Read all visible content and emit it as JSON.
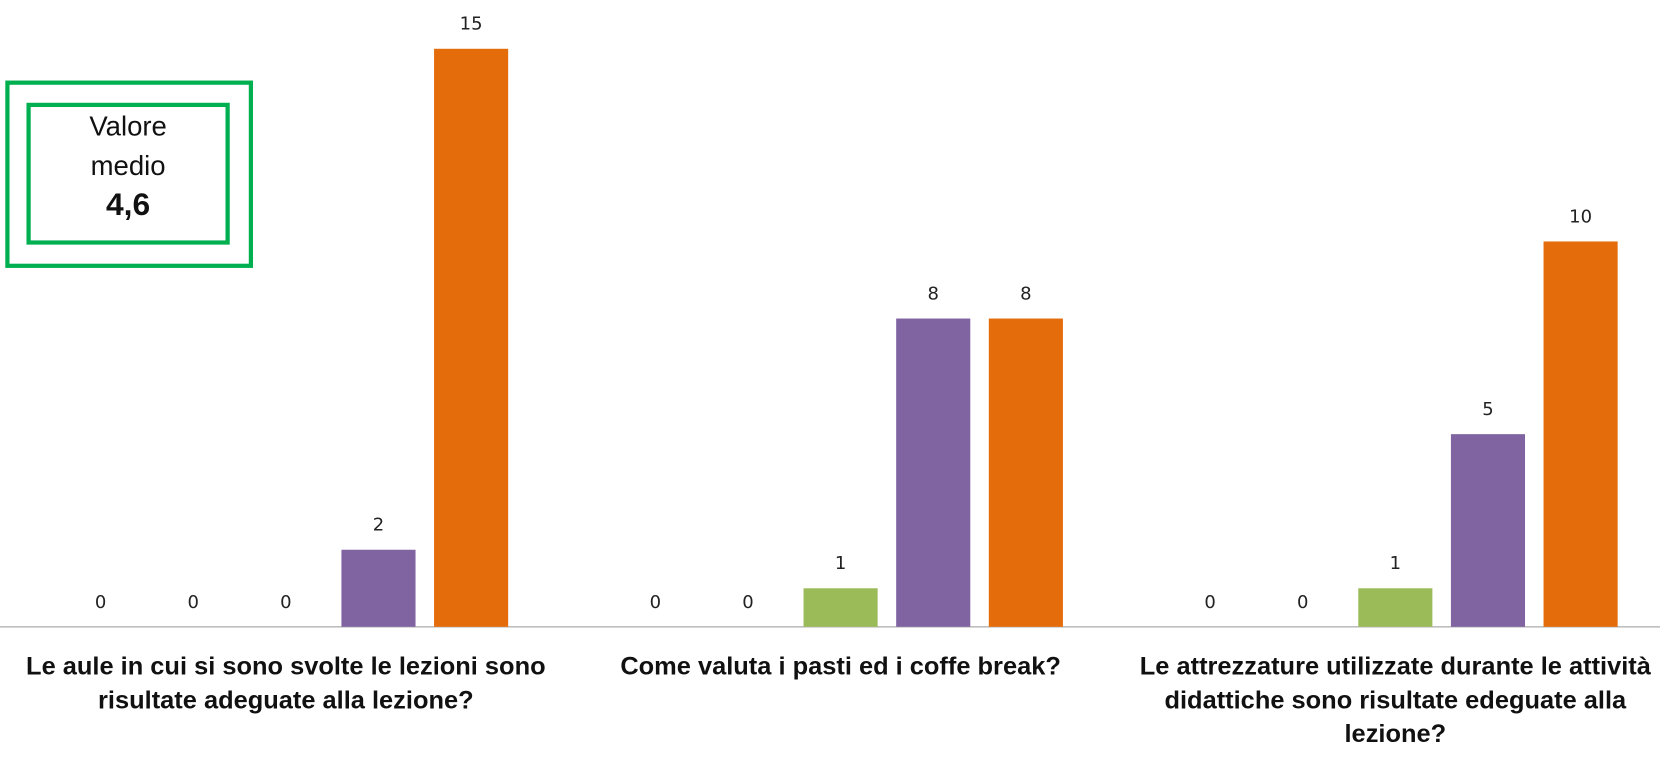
{
  "chart_data": {
    "type": "bar",
    "categories": [
      "Le aule in cui si sono svolte le lezioni sono risultate adeguate alla lezione?",
      "Come valuta i pasti ed i coffe break?",
      "Le attrezzature utilizzate durante le attività didattiche sono risultate edeguate alla lezione?"
    ],
    "series": [
      {
        "color": "#4F81BD",
        "values": [
          0,
          0,
          0
        ]
      },
      {
        "color": "#C0504D",
        "values": [
          0,
          0,
          0
        ]
      },
      {
        "color": "#9BBB59",
        "values": [
          0,
          1,
          1
        ]
      },
      {
        "color": "#8064A2",
        "values": [
          2,
          8,
          5
        ]
      },
      {
        "color": "#E46C0A",
        "values": [
          15,
          8,
          10
        ]
      }
    ],
    "ylim": [
      0,
      15
    ],
    "annotation": {
      "label": "Valore medio",
      "value": "4,6",
      "color": "#00B050"
    }
  }
}
